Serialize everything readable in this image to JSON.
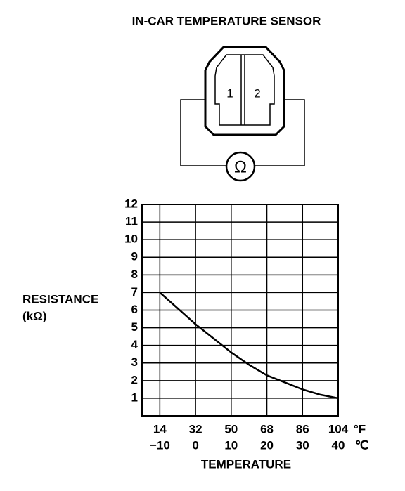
{
  "chart_data": {
    "type": "line",
    "title": "IN-CAR TEMPERATURE SENSOR",
    "diagram_labels": [
      "1",
      "2",
      "Ω"
    ],
    "x": [
      -10,
      -5,
      0,
      5,
      10,
      15,
      20,
      25,
      30,
      35,
      40
    ],
    "values": [
      7,
      6.1,
      5.2,
      4.4,
      3.6,
      2.9,
      2.3,
      1.9,
      1.5,
      1.2,
      1.0
    ],
    "color": "#000000",
    "xlim": [
      -15,
      40
    ],
    "xticks": [
      {
        "value": -10,
        "label": "−10"
      },
      0,
      10,
      20,
      30,
      40
    ],
    "xticks_f": [
      {
        "value": -10,
        "label": "14"
      },
      {
        "value": 0,
        "label": "32"
      },
      {
        "value": 10,
        "label": "50"
      },
      {
        "value": 20,
        "label": "68"
      },
      {
        "value": 30,
        "label": "86"
      },
      {
        "value": 40,
        "label": "104"
      }
    ],
    "x_units": [
      "°F",
      "℃"
    ],
    "ylim": [
      0,
      12
    ],
    "yticks": [
      1,
      2,
      3,
      4,
      5,
      6,
      7,
      8,
      9,
      10,
      11,
      12
    ],
    "y_label": [
      "RESISTANCE",
      "(kΩ)"
    ],
    "x_label": "TEMPERATURE",
    "grid": true
  }
}
